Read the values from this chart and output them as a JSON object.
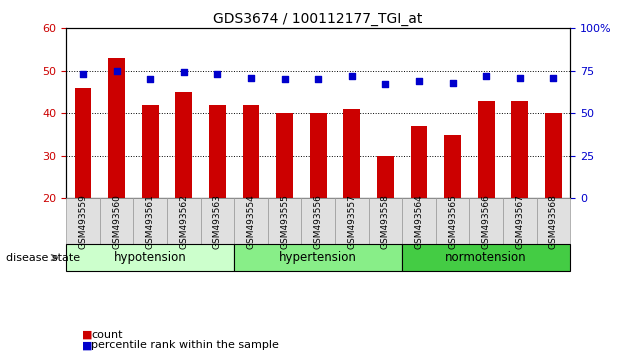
{
  "title": "GDS3674 / 100112177_TGI_at",
  "samples": [
    "GSM493559",
    "GSM493560",
    "GSM493561",
    "GSM493562",
    "GSM493563",
    "GSM493554",
    "GSM493555",
    "GSM493556",
    "GSM493557",
    "GSM493558",
    "GSM493564",
    "GSM493565",
    "GSM493566",
    "GSM493567",
    "GSM493568"
  ],
  "bar_values": [
    46,
    53,
    42,
    45,
    42,
    42,
    40,
    40,
    41,
    30,
    37,
    35,
    43,
    43,
    40
  ],
  "dot_values": [
    73,
    75,
    70,
    74,
    73,
    71,
    70,
    70,
    72,
    67,
    69,
    68,
    72,
    71,
    71
  ],
  "bar_color": "#cc0000",
  "dot_color": "#0000cc",
  "ylim_left": [
    20,
    60
  ],
  "ylim_right": [
    0,
    100
  ],
  "yticks_left": [
    20,
    30,
    40,
    50,
    60
  ],
  "yticks_right": [
    0,
    25,
    50,
    75,
    100
  ],
  "groups": [
    {
      "label": "hypotension",
      "start": 0,
      "end": 5,
      "color": "#ccffcc"
    },
    {
      "label": "hypertension",
      "start": 5,
      "end": 10,
      "color": "#88ee88"
    },
    {
      "label": "normotension",
      "start": 10,
      "end": 15,
      "color": "#44cc44"
    }
  ],
  "legend_count_label": "count",
  "legend_pct_label": "percentile rank within the sample",
  "disease_state_label": "disease state",
  "bar_width": 0.5
}
